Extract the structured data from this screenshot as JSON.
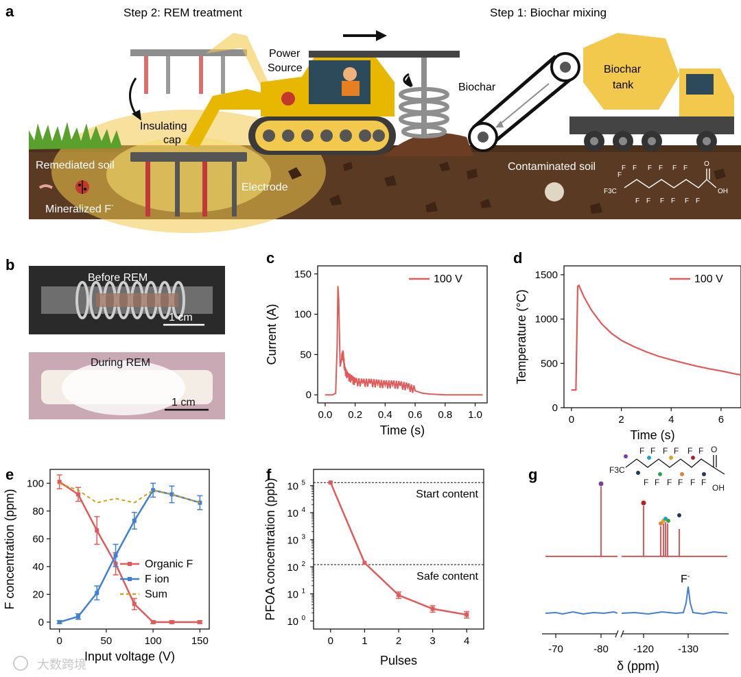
{
  "panel_a": {
    "letter": "a",
    "step2": "Step 2: REM treatment",
    "step1": "Step 1: Biochar mixing",
    "power_line1": "Power",
    "power_line2": "Source",
    "biochar": "Biochar",
    "tank_line1": "Biochar",
    "tank_line2": "tank",
    "insulating_line1": "Insulating",
    "insulating_line2": "cap",
    "remediated": "Remediated soil",
    "electrode": "Electrode",
    "mineralized": "Mineralized F",
    "mineralized_sup": "-",
    "contaminated": "Contaminated soil",
    "pfoa_f": "F",
    "pfoa_o": "O",
    "pfoa_oh": "OH",
    "pfoa_f3c": "F3C"
  },
  "panel_b": {
    "letter": "b",
    "before": "Before REM",
    "during": "During REM",
    "scale1": "1 cm",
    "scale2": "1 cm"
  },
  "chart_data": [
    {
      "panel": "c",
      "type": "line",
      "xlabel": "Time (s)",
      "ylabel": "Current (A)",
      "xlim": [
        -0.05,
        1.08
      ],
      "ylim": [
        -10,
        160
      ],
      "xticks": [
        "0.0",
        "0.2",
        "0.4",
        "0.6",
        "0.8",
        "1.0"
      ],
      "xtick_values": [
        0,
        0.2,
        0.4,
        0.6,
        0.8,
        1.0
      ],
      "yticks": [
        "0",
        "50",
        "100",
        "150"
      ],
      "ytick_values": [
        0,
        50,
        100,
        150
      ],
      "legend": [
        "100 V"
      ],
      "color": "#e05a5a",
      "series": [
        {
          "name": "100 V",
          "x": [
            0,
            0.05,
            0.07,
            0.08,
            0.085,
            0.09,
            0.1,
            0.11,
            0.12,
            0.13,
            0.15,
            0.18,
            0.2,
            0.25,
            0.3,
            0.35,
            0.4,
            0.45,
            0.5,
            0.55,
            0.6,
            0.65,
            0.7,
            0.8,
            0.9,
            1.0,
            1.05
          ],
          "y": [
            0,
            0,
            2,
            60,
            135,
            120,
            35,
            45,
            50,
            30,
            22,
            18,
            15,
            14,
            14,
            13,
            12,
            12,
            11,
            9,
            5,
            2,
            1,
            0,
            0,
            0,
            0
          ]
        }
      ]
    },
    {
      "panel": "d",
      "type": "line",
      "xlabel": "Time (s)",
      "ylabel": "Temperature (°C)",
      "xlim": [
        -0.3,
        6.8
      ],
      "ylim": [
        0,
        1600
      ],
      "xticks": [
        "0",
        "2",
        "4",
        "6"
      ],
      "xtick_values": [
        0,
        2,
        4,
        6
      ],
      "yticks": [
        "0",
        "500",
        "1000",
        "1500"
      ],
      "ytick_values": [
        0,
        500,
        1000,
        1500
      ],
      "legend": [
        "100 V"
      ],
      "color": "#e05a5a",
      "series": [
        {
          "name": "100 V",
          "x": [
            0,
            0.18,
            0.25,
            0.3,
            0.5,
            0.8,
            1.2,
            1.6,
            2,
            2.5,
            3,
            3.5,
            4,
            4.5,
            5,
            5.5,
            6,
            6.5,
            6.8
          ],
          "y": [
            200,
            200,
            1370,
            1380,
            1250,
            1100,
            950,
            840,
            760,
            690,
            630,
            580,
            540,
            505,
            470,
            440,
            415,
            385,
            370
          ]
        }
      ]
    },
    {
      "panel": "e",
      "type": "line",
      "xlabel": "Input voltage (V)",
      "ylabel": "F concentration (ppm)",
      "xlim": [
        -10,
        160
      ],
      "ylim": [
        -5,
        110
      ],
      "xticks": [
        "0",
        "50",
        "100",
        "150"
      ],
      "xtick_values": [
        0,
        50,
        100,
        150
      ],
      "yticks": [
        "0",
        "20",
        "40",
        "60",
        "80",
        "100"
      ],
      "ytick_values": [
        0,
        20,
        40,
        60,
        80,
        100
      ],
      "categories": [
        0,
        20,
        40,
        60,
        80,
        100,
        120,
        150
      ],
      "series": [
        {
          "name": "Organic F",
          "color": "#e05a5a",
          "values": [
            101,
            92,
            66,
            42,
            13,
            0,
            0,
            0
          ],
          "errors": [
            5,
            5,
            10,
            8,
            4,
            1,
            1,
            1
          ]
        },
        {
          "name": "F ion",
          "color": "#3f7fd4",
          "values": [
            0,
            4,
            21,
            48,
            73,
            95,
            92,
            86
          ],
          "errors": [
            1,
            2,
            5,
            8,
            6,
            5,
            6,
            5
          ]
        },
        {
          "name": "Sum",
          "color": "#d4a017",
          "dashed": true,
          "values": [
            100,
            95,
            86,
            89,
            86,
            95,
            92,
            86
          ]
        }
      ]
    },
    {
      "panel": "f",
      "type": "line",
      "xlabel": "Pulses",
      "ylabel": "PFOA concentration (ppb)",
      "yscale": "log",
      "xlim": [
        -0.5,
        4.5
      ],
      "ylim_exp": [
        -0.3,
        5.6
      ],
      "xticks": [
        "0",
        "1",
        "2",
        "3",
        "4"
      ],
      "xtick_values": [
        0,
        1,
        2,
        3,
        4
      ],
      "ytick_exponents": [
        0,
        1,
        2,
        3,
        4,
        5
      ],
      "ytick_base": "10",
      "color": "#e05a5a",
      "series": [
        {
          "name": "PFOA",
          "x": [
            0,
            1,
            2,
            3,
            4
          ],
          "y": [
            130000,
            140,
            9,
            2.8,
            1.7
          ]
        }
      ],
      "hlines": [
        {
          "value": 130000,
          "label": "Start content"
        },
        {
          "value": 120,
          "label": "Safe content"
        }
      ]
    }
  ],
  "panel_g": {
    "letter": "g",
    "xlabel": "δ (ppm)",
    "xticks": [
      "-70",
      "-80",
      "-120",
      "-130"
    ],
    "f_minus": "F",
    "f_minus_sup": "-",
    "mol_f3c": "F3C",
    "mol_f": "F",
    "mol_o": "O",
    "mol_oh": "OH",
    "red_color": "#e05a5a",
    "blue_color": "#3f7fd4"
  },
  "letters": {
    "c": "c",
    "d": "d",
    "e": "e",
    "f": "f"
  },
  "watermark": "大数跨境"
}
